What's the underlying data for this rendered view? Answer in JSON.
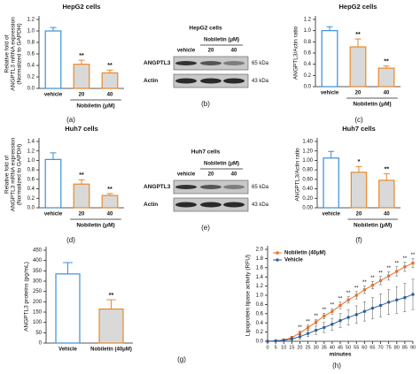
{
  "chart_data": [
    {
      "type": "bar",
      "panel_label": "(a)",
      "title": "HepG2 cells",
      "ylabel": [
        "Relative fold of",
        "ANGPTL3 mRNA expression",
        "(Normalized to GAPDH)"
      ],
      "xlabel": "Nobiletin (μM)",
      "categories": [
        "vehicle",
        "20",
        "40"
      ],
      "values": [
        1.0,
        0.42,
        0.27
      ],
      "errors": [
        0.06,
        0.07,
        0.05
      ],
      "annotations": [
        null,
        "**",
        "**"
      ],
      "colors": [
        "#3a8fd9",
        "#e8892b",
        "#e8892b"
      ],
      "fills": [
        "#ffffff",
        "#d9d9d9",
        "#d9d9d9"
      ],
      "ylim": [
        0,
        1.2
      ],
      "yticks": [
        {
          "value": 0,
          "label": "0.0"
        },
        {
          "value": 0.2,
          "label": "0.2"
        },
        {
          "value": 0.4,
          "label": "0.4"
        },
        {
          "value": 0.6,
          "label": "0.6"
        },
        {
          "value": 0.8,
          "label": "0.8"
        },
        {
          "value": 1,
          "label": "1.0"
        },
        {
          "value": 1.2,
          "label": "1.2"
        }
      ]
    },
    {
      "type": "blot",
      "panel_label": "(b)",
      "title": "HepG2 cells",
      "xlabel": "Nobiletin (μM)",
      "categories": [
        "vehicle",
        "20",
        "40"
      ],
      "rows": [
        {
          "name": "ANGPTL3",
          "size": "65 kDa"
        },
        {
          "name": "Actin",
          "size": "43 kDa"
        }
      ]
    },
    {
      "type": "bar",
      "panel_label": "(c)",
      "title": "HepG2 cells",
      "ylabel": [
        "ANGPTL3/Actin ratio"
      ],
      "xlabel": "Nobiletin (μM)",
      "categories": [
        "vehicle",
        "20",
        "40"
      ],
      "values": [
        1.0,
        0.71,
        0.33
      ],
      "errors": [
        0.07,
        0.14,
        0.04
      ],
      "annotations": [
        null,
        "**",
        "**"
      ],
      "colors": [
        "#3a8fd9",
        "#e8892b",
        "#e8892b"
      ],
      "fills": [
        "#ffffff",
        "#d9d9d9",
        "#d9d9d9"
      ],
      "ylim": [
        0,
        1.2
      ],
      "yticks": [
        {
          "value": 0,
          "label": "0.0"
        },
        {
          "value": 0.2,
          "label": "0.2"
        },
        {
          "value": 0.4,
          "label": "0.4"
        },
        {
          "value": 0.6,
          "label": "0.6"
        },
        {
          "value": 0.8,
          "label": "0.8"
        },
        {
          "value": 1,
          "label": "1.0"
        },
        {
          "value": 1.2,
          "label": "1.2"
        }
      ]
    },
    {
      "type": "bar",
      "panel_label": "(d)",
      "title": "Huh7 cells",
      "ylabel": [
        "Relative fold of",
        "ANGPTL3 mRNA expression",
        "(Normalized to GAPDH)"
      ],
      "xlabel": "Nobiletin (μM)",
      "categories": [
        "vehicle",
        "20",
        "40"
      ],
      "values": [
        1.02,
        0.5,
        0.26
      ],
      "errors": [
        0.14,
        0.09,
        0.04
      ],
      "annotations": [
        null,
        "**",
        "**"
      ],
      "colors": [
        "#3a8fd9",
        "#e8892b",
        "#e8892b"
      ],
      "fills": [
        "#ffffff",
        "#d9d9d9",
        "#d9d9d9"
      ],
      "ylim": [
        0,
        1.4
      ],
      "yticks": [
        {
          "value": 0,
          "label": "0.0"
        },
        {
          "value": 0.2,
          "label": "0.2"
        },
        {
          "value": 0.4,
          "label": "0.4"
        },
        {
          "value": 0.6,
          "label": "0.6"
        },
        {
          "value": 0.8,
          "label": "0.8"
        },
        {
          "value": 1,
          "label": "1.0"
        },
        {
          "value": 1.2,
          "label": "1.2"
        },
        {
          "value": 1.4,
          "label": "1.4"
        }
      ]
    },
    {
      "type": "blot",
      "panel_label": "(e)",
      "title": "Huh7 cells",
      "xlabel": "Nobiletin (μM)",
      "categories": [
        "vehicle",
        "20",
        "40"
      ],
      "rows": [
        {
          "name": "ANGPTL3",
          "size": "65 kDa"
        },
        {
          "name": "Actin",
          "size": "43 kDa"
        }
      ]
    },
    {
      "type": "bar",
      "panel_label": "(f)",
      "title": "Huh7 cells",
      "ylabel": [
        "ANGPTL3/Actin ratio"
      ],
      "xlabel": "Nobiletin (μM)",
      "categories": [
        "vehicle",
        "20",
        "40"
      ],
      "values": [
        1.05,
        0.75,
        0.58
      ],
      "errors": [
        0.14,
        0.12,
        0.14
      ],
      "annotations": [
        null,
        "*",
        "**"
      ],
      "colors": [
        "#3a8fd9",
        "#e8892b",
        "#e8892b"
      ],
      "fills": [
        "#ffffff",
        "#d9d9d9",
        "#d9d9d9"
      ],
      "ylim": [
        0,
        1.4
      ],
      "yticks": [
        {
          "value": 0,
          "label": "0.00"
        },
        {
          "value": 0.2,
          "label": "0.20"
        },
        {
          "value": 0.4,
          "label": "0.40"
        },
        {
          "value": 0.6,
          "label": "0.60"
        },
        {
          "value": 0.8,
          "label": "0.80"
        },
        {
          "value": 1,
          "label": "1.00"
        },
        {
          "value": 1.2,
          "label": "1.20"
        },
        {
          "value": 1.4,
          "label": "1.40"
        }
      ]
    },
    {
      "type": "bar",
      "panel_label": "(g)",
      "ylabel": [
        "ANGPTL3 proteins (pg/mL)"
      ],
      "categories": [
        "Vehicle",
        "Nobiletin (40μM)"
      ],
      "values": [
        335,
        165
      ],
      "errors": [
        55,
        45
      ],
      "annotations": [
        null,
        "**"
      ],
      "colors": [
        "#3a8fd9",
        "#e8892b"
      ],
      "fills": [
        "#ffffff",
        "#d9d9d9"
      ],
      "ylim": [
        0,
        450
      ],
      "yticks": [
        0,
        50,
        100,
        150,
        200,
        250,
        300,
        350,
        400,
        450
      ]
    },
    {
      "type": "line",
      "panel_label": "(h)",
      "xlabel": "minutes",
      "ylabel": [
        "Lipoprotein lipase activity (RFU)"
      ],
      "x": [
        0,
        5,
        10,
        15,
        20,
        25,
        30,
        35,
        40,
        45,
        50,
        55,
        60,
        65,
        70,
        75,
        80,
        85,
        90
      ],
      "series": [
        {
          "name": "Nobiletin (40μM)",
          "color": "#e8702b",
          "marker": "square",
          "values": [
            0,
            0.01,
            0.03,
            0.08,
            0.18,
            0.3,
            0.42,
            0.55,
            0.65,
            0.78,
            0.9,
            1.0,
            1.12,
            1.22,
            1.32,
            1.42,
            1.52,
            1.62,
            1.7
          ],
          "errors": [
            0.01,
            0.01,
            0.02,
            0.03,
            0.04,
            0.05,
            0.05,
            0.06,
            0.06,
            0.07,
            0.07,
            0.08,
            0.08,
            0.08,
            0.09,
            0.09,
            0.1,
            0.1,
            0.1
          ]
        },
        {
          "name": "Vehicle",
          "color": "#2b5f9e",
          "marker": "circle",
          "values": [
            0,
            0.01,
            0.02,
            0.05,
            0.1,
            0.17,
            0.24,
            0.3,
            0.37,
            0.45,
            0.52,
            0.58,
            0.65,
            0.72,
            0.78,
            0.85,
            0.9,
            0.95,
            1.02
          ],
          "errors": [
            0.01,
            0.01,
            0.02,
            0.03,
            0.05,
            0.07,
            0.09,
            0.11,
            0.13,
            0.15,
            0.17,
            0.19,
            0.21,
            0.23,
            0.25,
            0.27,
            0.29,
            0.31,
            0.33
          ]
        }
      ],
      "annotations": [
        null,
        null,
        null,
        null,
        "**",
        "**",
        "**",
        "**",
        "**",
        "**",
        "**",
        "**",
        "**",
        "**",
        "**",
        "**",
        "**",
        "**",
        "**"
      ],
      "xlim": [
        0,
        90
      ],
      "xticks": [
        0,
        5,
        10,
        15,
        20,
        25,
        30,
        35,
        40,
        45,
        50,
        55,
        60,
        65,
        70,
        75,
        80,
        85,
        90
      ],
      "ylim": [
        0,
        2
      ],
      "yticks": [
        {
          "value": 0,
          "label": "0.0"
        },
        {
          "value": 0.2,
          "label": "0.2"
        },
        {
          "value": 0.4,
          "label": "0.4"
        },
        {
          "value": 0.6,
          "label": "0.6"
        },
        {
          "value": 0.8,
          "label": "0.8"
        },
        {
          "value": 1,
          "label": "1.0"
        },
        {
          "value": 1.2,
          "label": "1.2"
        },
        {
          "value": 1.4,
          "label": "1.4"
        },
        {
          "value": 1.6,
          "label": "1.6"
        },
        {
          "value": 1.8,
          "label": "1.8"
        },
        {
          "value": 2,
          "label": "2.0"
        }
      ],
      "legend": "upper left"
    }
  ]
}
